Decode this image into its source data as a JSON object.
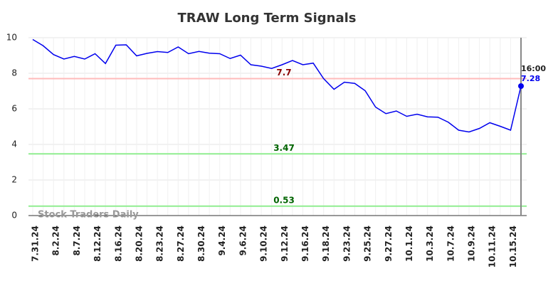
{
  "chart_data": {
    "type": "line",
    "title": "TRAW Long Term Signals",
    "watermark": "Stock Traders Daily",
    "categories": [
      "7.31.24",
      null,
      "8.2.24",
      null,
      "8.7.24",
      null,
      "8.12.24",
      null,
      "8.16.24",
      null,
      "8.20.24",
      null,
      "8.23.24",
      null,
      "8.27.24",
      null,
      "8.30.24",
      null,
      "9.4.24",
      null,
      "9.6.24",
      null,
      "9.10.24",
      null,
      "9.12.24",
      null,
      "9.16.24",
      null,
      "9.18.24",
      null,
      "9.23.24",
      null,
      "9.25.24",
      null,
      "9.27.24",
      null,
      "10.1.24",
      null,
      "10.3.24",
      null,
      "10.7.24",
      null,
      "10.9.24",
      null,
      "10.11.24",
      null,
      "10.15.24",
      null
    ],
    "values": [
      9.9,
      9.55,
      9.05,
      8.8,
      8.95,
      8.8,
      9.1,
      8.55,
      9.58,
      9.6,
      8.98,
      9.12,
      9.22,
      9.17,
      9.48,
      9.1,
      9.23,
      9.13,
      9.1,
      8.83,
      9.02,
      8.48,
      8.4,
      8.27,
      8.48,
      8.72,
      8.48,
      8.57,
      7.7,
      7.1,
      7.5,
      7.43,
      7.02,
      6.1,
      5.73,
      5.88,
      5.58,
      5.7,
      5.55,
      5.53,
      5.25,
      4.8,
      4.7,
      4.9,
      5.22,
      5.02,
      4.8,
      7.28
    ],
    "color": "#0000ee",
    "last_time_label": "16:00",
    "hlines": [
      {
        "value": 7.7,
        "color": "#ffbbbb",
        "label_color": "#8b0000"
      },
      {
        "value": 3.47,
        "color": "#90ee90",
        "label_color": "#006400"
      },
      {
        "value": 0.53,
        "color": "#90ee90",
        "label_color": "#006400"
      }
    ],
    "ylim": [
      0,
      10
    ],
    "yticks": [
      0,
      2,
      4,
      6,
      8,
      10
    ],
    "grid": true
  }
}
